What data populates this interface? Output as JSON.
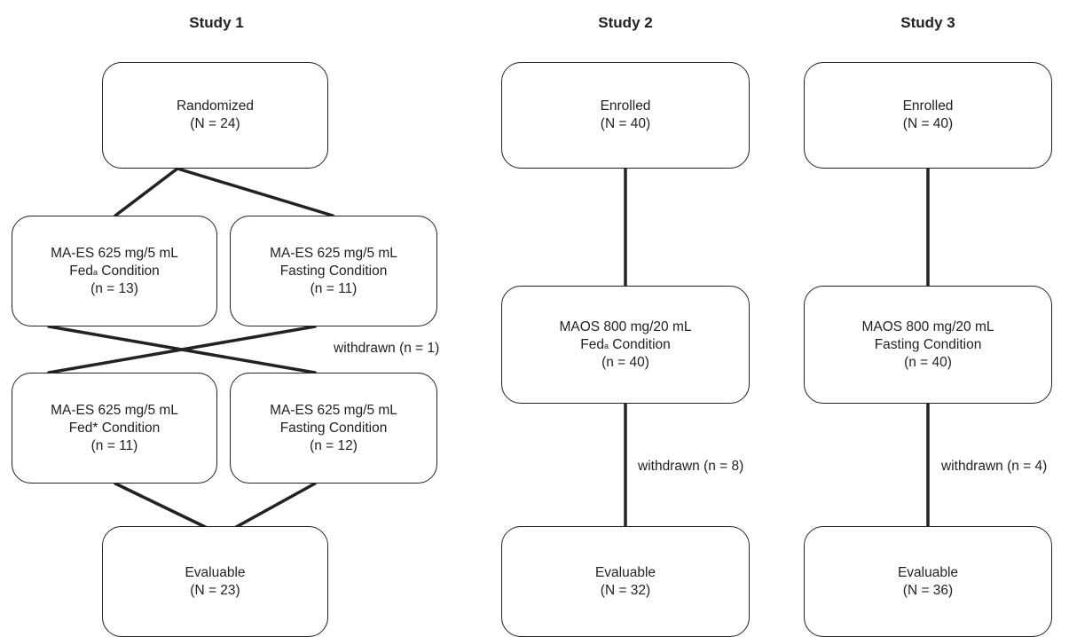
{
  "study1": {
    "title": "Study 1",
    "randomized": {
      "label": "Randomized",
      "n": "(N = 24)"
    },
    "p1_left": {
      "line1": "MA-ES 625 mg/5 mL",
      "line2": "Fed",
      "sup": "a",
      "line2_rest": " Condition",
      "n": "(n = 13)"
    },
    "p1_right": {
      "line1": "MA-ES 625 mg/5 mL",
      "line2": "Fasting Condition",
      "n": "(n = 11)"
    },
    "withdrawn": "withdrawn (n = 1)",
    "p2_left": {
      "line1": "MA-ES 625 mg/5 mL",
      "line2": "Fed* Condition",
      "n": "(n = 11)"
    },
    "p2_right": {
      "line1": "MA-ES 625 mg/5 mL",
      "line2": "Fasting Condition",
      "n": "(n = 12)"
    },
    "evaluable": {
      "label": "Evaluable",
      "n": "(N = 23)"
    }
  },
  "study2": {
    "title": "Study 2",
    "enrolled": {
      "label": "Enrolled",
      "n": "(N = 40)"
    },
    "treatment": {
      "line1": "MAOS 800 mg/20 mL",
      "line2": "Fed",
      "sup": "a",
      "line2_rest": " Condition",
      "n": "(n = 40)"
    },
    "withdrawn": "withdrawn (n = 8)",
    "evaluable": {
      "label": "Evaluable",
      "n": "(N = 32)"
    }
  },
  "study3": {
    "title": "Study 3",
    "enrolled": {
      "label": "Enrolled",
      "n": "(N = 40)"
    },
    "treatment": {
      "line1": "MAOS 800 mg/20 mL",
      "line2": "Fasting Condition",
      "n": "(n = 40)"
    },
    "withdrawn": "withdrawn (n = 4)",
    "evaluable": {
      "label": "Evaluable",
      "n": "(N = 36)"
    }
  }
}
